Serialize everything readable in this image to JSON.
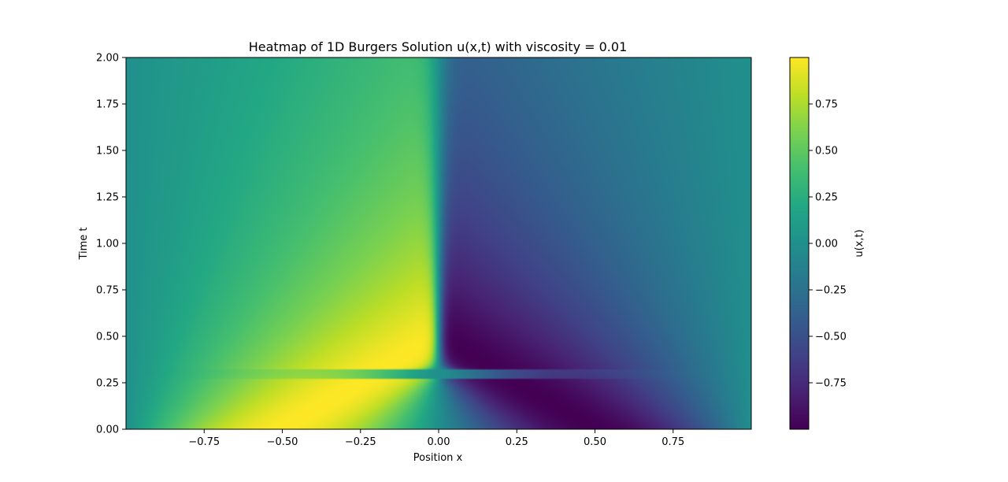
{
  "chart_data": {
    "type": "heatmap",
    "title": "Heatmap of 1D Burgers Solution u(x,t) with viscosity = 0.01",
    "xlabel": "Position x",
    "ylabel": "Time t",
    "colorbar_label": "u(x,t)",
    "colormap": "viridis",
    "xlim": [
      -1,
      1
    ],
    "ylim": [
      0,
      2
    ],
    "clim": [
      -1,
      1
    ],
    "x_ticks": [
      -0.75,
      -0.5,
      -0.25,
      0.0,
      0.25,
      0.5,
      0.75
    ],
    "x_tick_labels": [
      "−0.75",
      "−0.50",
      "−0.25",
      "0.00",
      "0.25",
      "0.50",
      "0.75"
    ],
    "y_ticks": [
      0.0,
      0.25,
      0.5,
      0.75,
      1.0,
      1.25,
      1.5,
      1.75,
      2.0
    ],
    "y_tick_labels": [
      "0.00",
      "0.25",
      "0.50",
      "0.75",
      "1.00",
      "1.25",
      "1.50",
      "1.75",
      "2.00"
    ],
    "colorbar_ticks": [
      -0.75,
      -0.5,
      -0.25,
      0.0,
      0.25,
      0.5,
      0.75
    ],
    "colorbar_tick_labels": [
      "−0.75",
      "−0.50",
      "−0.25",
      "0.00",
      "0.25",
      "0.50",
      "0.75"
    ],
    "initial_condition": "u(x,0) = -sin(pi x)",
    "viscosity": 0.01,
    "shock_position_x": 0.0,
    "shock_formation_time": 0.32,
    "grid": false
  }
}
